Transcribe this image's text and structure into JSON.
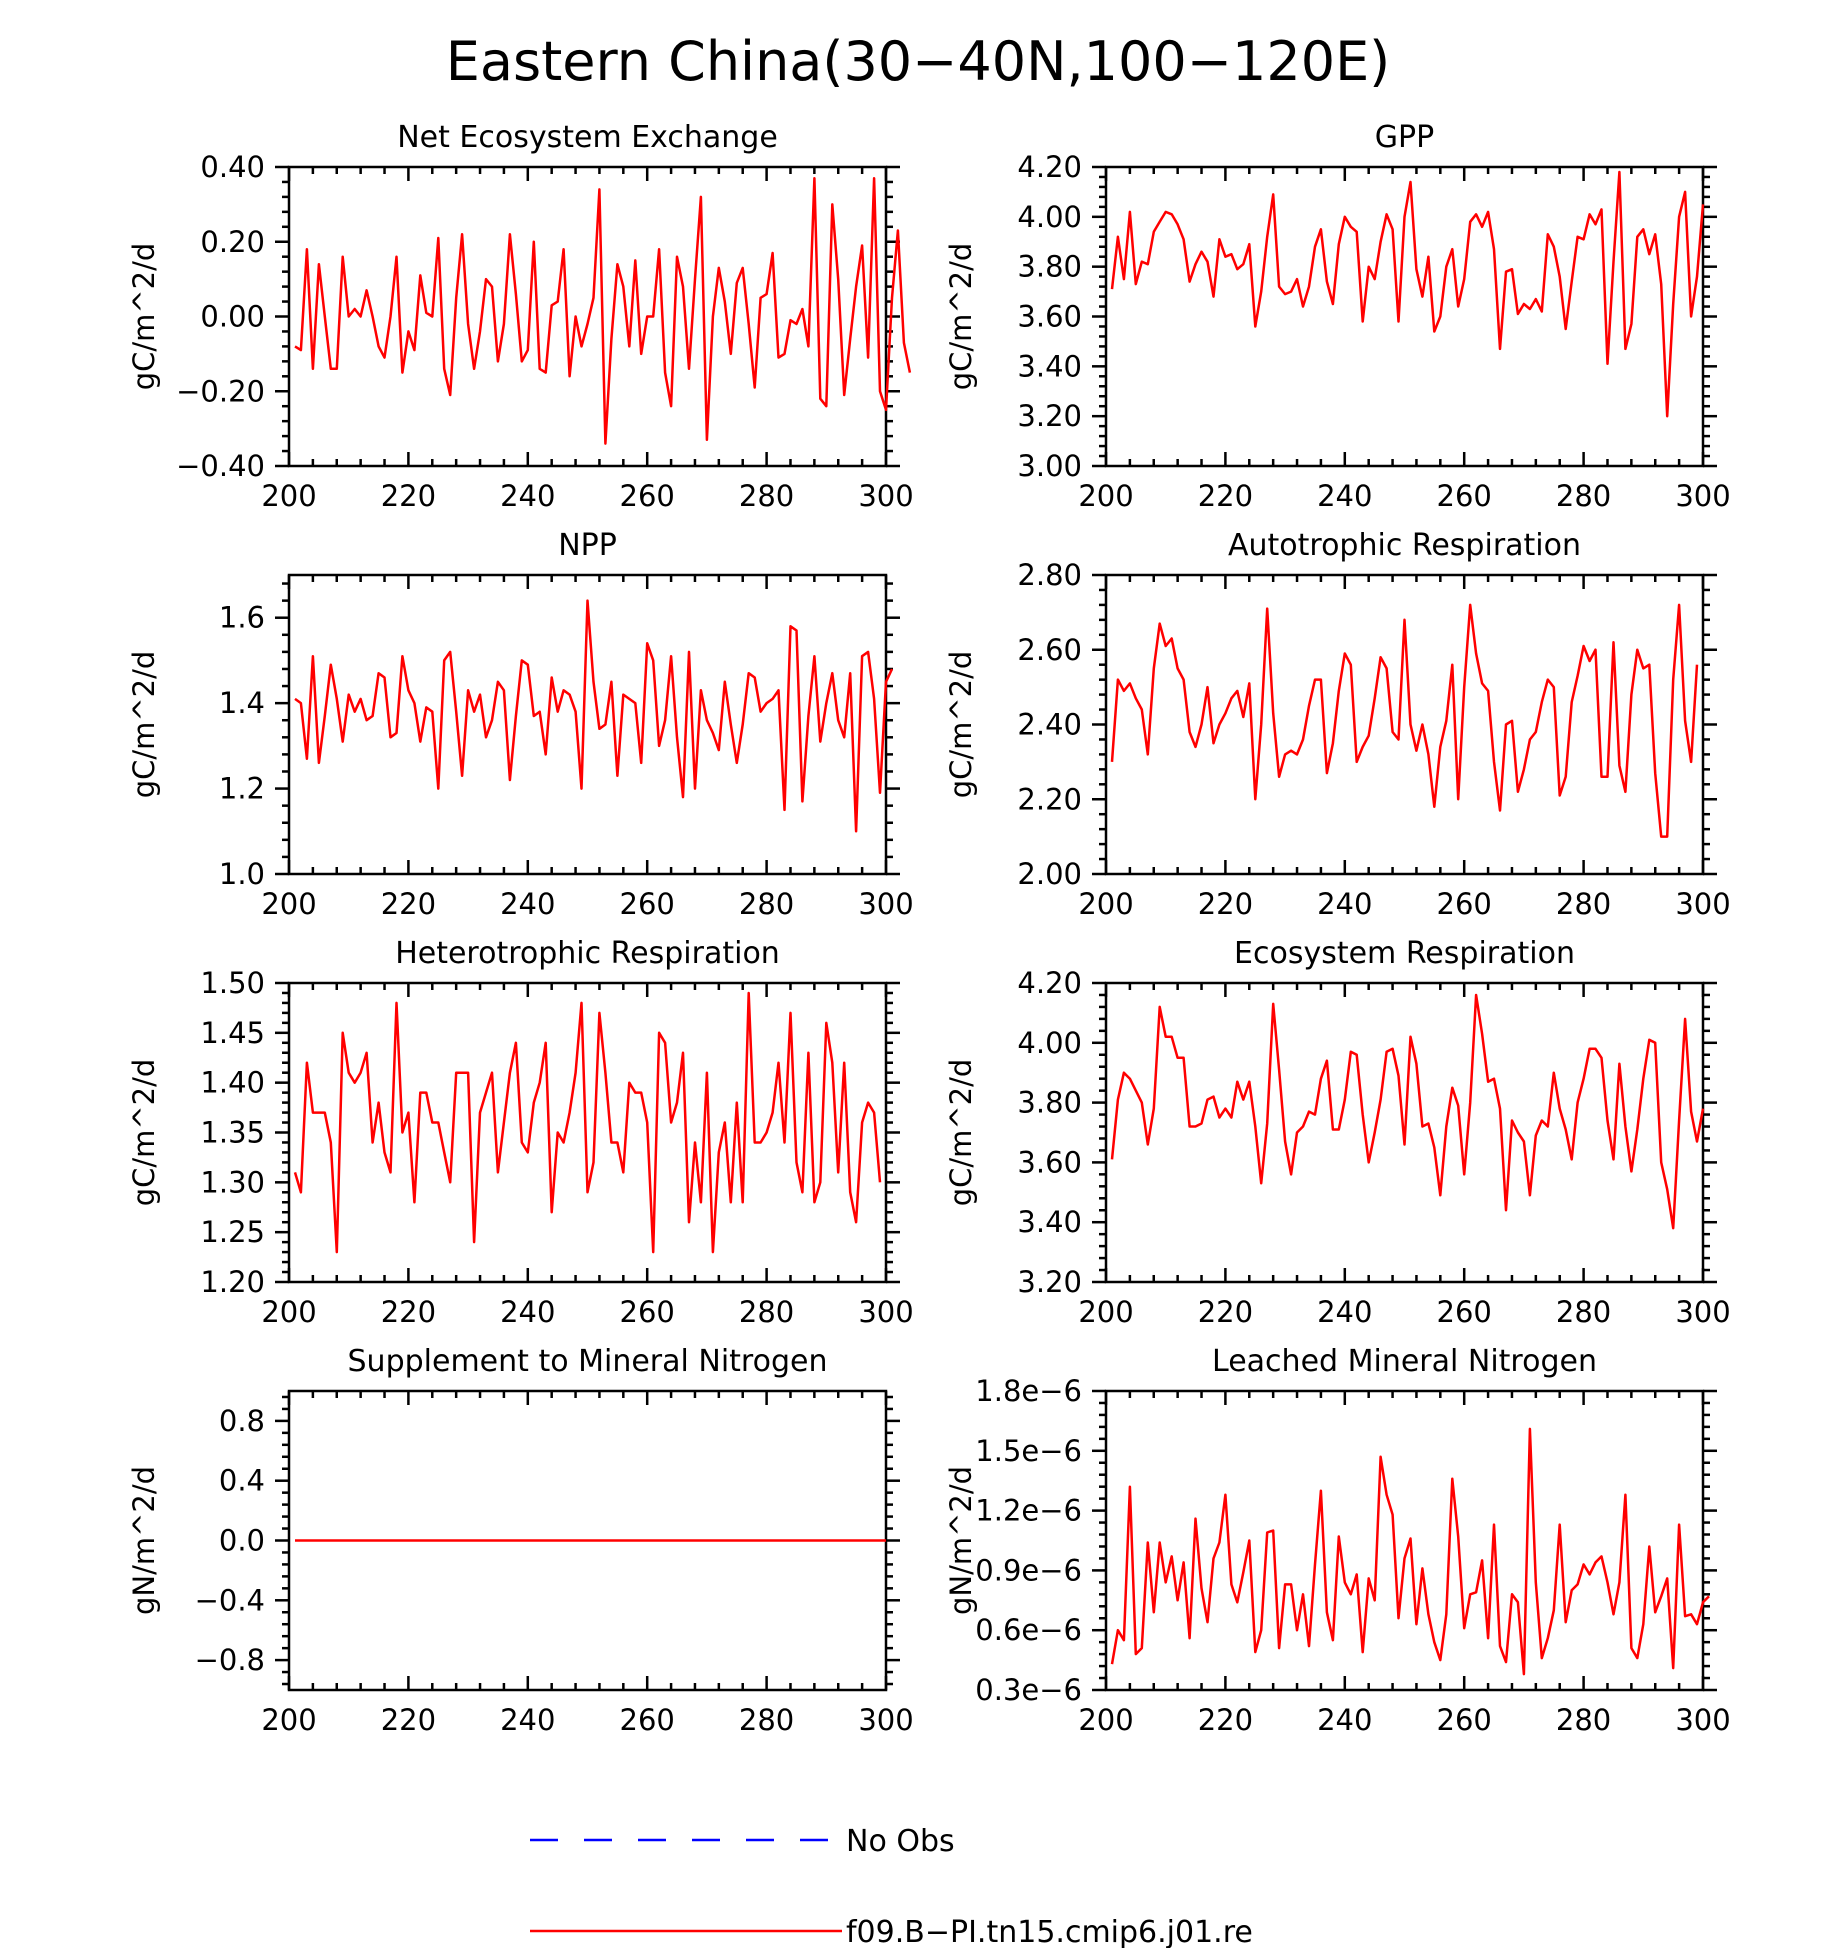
{
  "title": "Eastern China(30−40N,100−120E)",
  "colors": {
    "model": "#ff0000",
    "obs": "#0000ff",
    "axis": "#000000"
  },
  "legend": [
    {
      "label": "No Obs",
      "style": "dashed",
      "color": "#0000ff"
    },
    {
      "label": "f09.B−PI.tn15.cmip6.j01.re",
      "style": "solid",
      "color": "#ff0000"
    }
  ],
  "chart_data": [
    {
      "type": "line",
      "title": "Net Ecosystem Exchange",
      "ylabel": "gC/m^2/d",
      "xlim": [
        200,
        300
      ],
      "xticks": [
        200,
        220,
        240,
        260,
        280,
        300
      ],
      "ylim": [
        -0.4,
        0.4
      ],
      "yticks": [
        -0.4,
        -0.2,
        0.0,
        0.2,
        0.4
      ],
      "yticklabels": [
        "−0.40",
        "−0.20",
        "0.00",
        "0.20",
        "0.40"
      ],
      "yminor": 4,
      "grid": false,
      "series": [
        {
          "x_start": 201,
          "values": [
            -0.08,
            -0.09,
            0.18,
            -0.14,
            0.14,
            0.0,
            -0.14,
            -0.14,
            0.16,
            0.0,
            0.02,
            0.0,
            0.07,
            0.0,
            -0.08,
            -0.11,
            0.0,
            0.16,
            -0.15,
            -0.04,
            -0.09,
            0.11,
            0.01,
            0.0,
            0.21,
            -0.14,
            -0.21,
            0.05,
            0.22,
            -0.02,
            -0.14,
            -0.04,
            0.1,
            0.08,
            -0.12,
            -0.02,
            0.22,
            0.06,
            -0.12,
            -0.09,
            0.2,
            -0.14,
            -0.15,
            0.03,
            0.04,
            0.18,
            -0.16,
            0.0,
            -0.08,
            -0.02,
            0.05,
            0.34,
            -0.34,
            -0.06,
            0.14,
            0.08,
            -0.08,
            0.15,
            -0.1,
            0.0,
            0.0,
            0.18,
            -0.15,
            -0.24,
            0.16,
            0.08,
            -0.14,
            0.1,
            0.32,
            -0.33,
            0.0,
            0.13,
            0.04,
            -0.1,
            0.09,
            0.13,
            -0.02,
            -0.19,
            0.05,
            0.06,
            0.17,
            -0.11,
            -0.1,
            -0.01,
            -0.02,
            0.02,
            -0.08,
            0.37,
            -0.22,
            -0.24,
            0.3,
            0.1,
            -0.21,
            -0.06,
            0.08,
            0.19,
            -0.11,
            0.37,
            -0.2,
            -0.25,
            0.05,
            0.23,
            -0.07,
            -0.15
          ]
        }
      ]
    },
    {
      "type": "line",
      "title": "GPP",
      "ylabel": "gC/m^2/d",
      "xlim": [
        200,
        300
      ],
      "xticks": [
        200,
        220,
        240,
        260,
        280,
        300
      ],
      "ylim": [
        3.0,
        4.2
      ],
      "yticks": [
        3.0,
        3.2,
        3.4,
        3.6,
        3.8,
        4.0,
        4.2
      ],
      "yticklabels": [
        "3.00",
        "3.20",
        "3.40",
        "3.60",
        "3.80",
        "4.00",
        "4.20"
      ],
      "yminor": 4,
      "grid": false,
      "series": [
        {
          "x_start": 201,
          "values": [
            3.71,
            3.92,
            3.75,
            4.02,
            3.73,
            3.82,
            3.81,
            3.94,
            3.98,
            4.02,
            4.01,
            3.97,
            3.91,
            3.74,
            3.81,
            3.86,
            3.82,
            3.68,
            3.91,
            3.84,
            3.85,
            3.79,
            3.81,
            3.89,
            3.56,
            3.7,
            3.92,
            4.09,
            3.72,
            3.69,
            3.7,
            3.75,
            3.64,
            3.72,
            3.88,
            3.95,
            3.74,
            3.65,
            3.89,
            4.0,
            3.96,
            3.94,
            3.58,
            3.8,
            3.75,
            3.9,
            4.01,
            3.95,
            3.58,
            4.0,
            4.14,
            3.79,
            3.68,
            3.84,
            3.54,
            3.6,
            3.8,
            3.87,
            3.64,
            3.75,
            3.98,
            4.01,
            3.96,
            4.02,
            3.87,
            3.47,
            3.78,
            3.79,
            3.61,
            3.65,
            3.63,
            3.67,
            3.62,
            3.93,
            3.88,
            3.76,
            3.55,
            3.74,
            3.92,
            3.91,
            4.01,
            3.97,
            4.03,
            3.41,
            3.82,
            4.18,
            3.47,
            3.57,
            3.92,
            3.95,
            3.85,
            3.93,
            3.73,
            3.2,
            3.65,
            4.0,
            4.1,
            3.6,
            3.76,
            4.05
          ]
        }
      ]
    },
    {
      "type": "line",
      "title": "NPP",
      "ylabel": "gC/m^2/d",
      "xlim": [
        200,
        300
      ],
      "xticks": [
        200,
        220,
        240,
        260,
        280,
        300
      ],
      "ylim": [
        1.0,
        1.7
      ],
      "yticks": [
        1.0,
        1.2,
        1.4,
        1.6
      ],
      "yticklabels": [
        "1.0",
        "1.2",
        "1.4",
        "1.6"
      ],
      "yminor": 4,
      "grid": false,
      "series": [
        {
          "x_start": 201,
          "values": [
            1.41,
            1.4,
            1.27,
            1.51,
            1.26,
            1.37,
            1.49,
            1.41,
            1.31,
            1.42,
            1.38,
            1.41,
            1.36,
            1.37,
            1.47,
            1.46,
            1.32,
            1.33,
            1.51,
            1.43,
            1.4,
            1.31,
            1.39,
            1.38,
            1.2,
            1.5,
            1.52,
            1.38,
            1.23,
            1.43,
            1.38,
            1.42,
            1.32,
            1.36,
            1.45,
            1.43,
            1.22,
            1.37,
            1.5,
            1.49,
            1.37,
            1.38,
            1.28,
            1.46,
            1.38,
            1.43,
            1.42,
            1.38,
            1.2,
            1.64,
            1.45,
            1.34,
            1.35,
            1.45,
            1.23,
            1.42,
            1.41,
            1.4,
            1.26,
            1.54,
            1.5,
            1.3,
            1.36,
            1.51,
            1.32,
            1.18,
            1.52,
            1.2,
            1.43,
            1.36,
            1.33,
            1.29,
            1.45,
            1.35,
            1.26,
            1.35,
            1.47,
            1.46,
            1.38,
            1.4,
            1.41,
            1.43,
            1.15,
            1.58,
            1.57,
            1.17,
            1.37,
            1.51,
            1.31,
            1.4,
            1.47,
            1.36,
            1.32,
            1.47,
            1.1,
            1.51,
            1.52,
            1.41,
            1.19,
            1.45,
            1.48
          ]
        }
      ]
    },
    {
      "type": "line",
      "title": "Autotrophic Respiration",
      "ylabel": "gC/m^2/d",
      "xlim": [
        200,
        300
      ],
      "xticks": [
        200,
        220,
        240,
        260,
        280,
        300
      ],
      "ylim": [
        2.0,
        2.8
      ],
      "yticks": [
        2.0,
        2.2,
        2.4,
        2.6,
        2.8
      ],
      "yticklabels": [
        "2.00",
        "2.20",
        "2.40",
        "2.60",
        "2.80"
      ],
      "yminor": 4,
      "grid": false,
      "series": [
        {
          "x_start": 201,
          "values": [
            2.3,
            2.52,
            2.49,
            2.51,
            2.47,
            2.44,
            2.32,
            2.55,
            2.67,
            2.61,
            2.63,
            2.55,
            2.52,
            2.38,
            2.34,
            2.4,
            2.5,
            2.35,
            2.4,
            2.43,
            2.47,
            2.49,
            2.42,
            2.51,
            2.2,
            2.4,
            2.71,
            2.43,
            2.26,
            2.32,
            2.33,
            2.32,
            2.36,
            2.45,
            2.52,
            2.52,
            2.27,
            2.35,
            2.49,
            2.59,
            2.56,
            2.3,
            2.34,
            2.37,
            2.47,
            2.58,
            2.55,
            2.38,
            2.36,
            2.68,
            2.4,
            2.33,
            2.4,
            2.32,
            2.18,
            2.34,
            2.41,
            2.56,
            2.2,
            2.5,
            2.72,
            2.59,
            2.51,
            2.49,
            2.3,
            2.17,
            2.4,
            2.41,
            2.22,
            2.28,
            2.36,
            2.38,
            2.46,
            2.52,
            2.5,
            2.21,
            2.26,
            2.46,
            2.53,
            2.61,
            2.57,
            2.6,
            2.26,
            2.26,
            2.62,
            2.29,
            2.22,
            2.48,
            2.6,
            2.55,
            2.56,
            2.27,
            2.1,
            2.1,
            2.52,
            2.72,
            2.41,
            2.3,
            2.56
          ]
        }
      ]
    },
    {
      "type": "line",
      "title": "Heterotrophic Respiration",
      "ylabel": "gC/m^2/d",
      "xlim": [
        200,
        300
      ],
      "xticks": [
        200,
        220,
        240,
        260,
        280,
        300
      ],
      "ylim": [
        1.2,
        1.5
      ],
      "yticks": [
        1.2,
        1.25,
        1.3,
        1.35,
        1.4,
        1.45,
        1.5
      ],
      "yticklabels": [
        "1.20",
        "1.25",
        "1.30",
        "1.35",
        "1.40",
        "1.45",
        "1.50"
      ],
      "yminor": 4,
      "grid": false,
      "series": [
        {
          "x_start": 201,
          "values": [
            1.31,
            1.29,
            1.42,
            1.37,
            1.37,
            1.37,
            1.34,
            1.23,
            1.45,
            1.41,
            1.4,
            1.41,
            1.43,
            1.34,
            1.38,
            1.33,
            1.31,
            1.48,
            1.35,
            1.37,
            1.28,
            1.39,
            1.39,
            1.36,
            1.36,
            1.33,
            1.3,
            1.41,
            1.41,
            1.41,
            1.24,
            1.37,
            1.39,
            1.41,
            1.31,
            1.36,
            1.41,
            1.44,
            1.34,
            1.33,
            1.38,
            1.4,
            1.44,
            1.27,
            1.35,
            1.34,
            1.37,
            1.41,
            1.48,
            1.29,
            1.32,
            1.47,
            1.41,
            1.34,
            1.34,
            1.31,
            1.4,
            1.39,
            1.39,
            1.36,
            1.23,
            1.45,
            1.44,
            1.36,
            1.38,
            1.43,
            1.26,
            1.34,
            1.28,
            1.41,
            1.23,
            1.33,
            1.36,
            1.28,
            1.38,
            1.28,
            1.49,
            1.34,
            1.34,
            1.35,
            1.37,
            1.42,
            1.34,
            1.47,
            1.32,
            1.29,
            1.43,
            1.28,
            1.3,
            1.46,
            1.42,
            1.31,
            1.42,
            1.29,
            1.26,
            1.36,
            1.38,
            1.37,
            1.3
          ]
        }
      ]
    },
    {
      "type": "line",
      "title": "Ecosystem Respiration",
      "ylabel": "gC/m^2/d",
      "xlim": [
        200,
        300
      ],
      "xticks": [
        200,
        220,
        240,
        260,
        280,
        300
      ],
      "ylim": [
        3.2,
        4.2
      ],
      "yticks": [
        3.2,
        3.4,
        3.6,
        3.8,
        4.0,
        4.2
      ],
      "yticklabels": [
        "3.20",
        "3.40",
        "3.60",
        "3.80",
        "4.00",
        "4.20"
      ],
      "yminor": 4,
      "grid": false,
      "series": [
        {
          "x_start": 201,
          "values": [
            3.61,
            3.81,
            3.9,
            3.88,
            3.84,
            3.8,
            3.66,
            3.78,
            4.12,
            4.02,
            4.02,
            3.95,
            3.95,
            3.72,
            3.72,
            3.73,
            3.81,
            3.82,
            3.75,
            3.78,
            3.75,
            3.87,
            3.81,
            3.87,
            3.72,
            3.53,
            3.73,
            4.13,
            3.91,
            3.67,
            3.56,
            3.7,
            3.72,
            3.77,
            3.76,
            3.88,
            3.94,
            3.71,
            3.71,
            3.81,
            3.97,
            3.96,
            3.76,
            3.6,
            3.7,
            3.81,
            3.97,
            3.98,
            3.89,
            3.66,
            4.02,
            3.93,
            3.72,
            3.73,
            3.65,
            3.49,
            3.72,
            3.85,
            3.79,
            3.56,
            3.8,
            4.16,
            4.03,
            3.87,
            3.88,
            3.78,
            3.44,
            3.74,
            3.7,
            3.67,
            3.49,
            3.69,
            3.74,
            3.72,
            3.9,
            3.78,
            3.71,
            3.61,
            3.8,
            3.88,
            3.98,
            3.98,
            3.95,
            3.74,
            3.61,
            3.93,
            3.72,
            3.57,
            3.71,
            3.88,
            4.01,
            4.0,
            3.6,
            3.51,
            3.38,
            3.74,
            4.08,
            3.77,
            3.67,
            3.78
          ]
        }
      ]
    },
    {
      "type": "line",
      "title": "Supplement to Mineral Nitrogen",
      "ylabel": "gN/m^2/d",
      "xlim": [
        200,
        300
      ],
      "xticks": [
        200,
        220,
        240,
        260,
        280,
        300
      ],
      "ylim": [
        -1.0,
        1.0
      ],
      "yticks": [
        -0.8,
        -0.4,
        0.0,
        0.4,
        0.8
      ],
      "yticklabels": [
        "−0.8",
        "−0.4",
        "0.0",
        "0.4",
        "0.8"
      ],
      "yminor": 4,
      "grid": false,
      "series": [
        {
          "x": [
            201,
            300
          ],
          "values": [
            0.0,
            0.0
          ]
        }
      ]
    },
    {
      "type": "line",
      "title": "Leached Mineral Nitrogen",
      "ylabel": "gN/m^2/d",
      "xlim": [
        200,
        300
      ],
      "xticks": [
        200,
        220,
        240,
        260,
        280,
        300
      ],
      "ylim": [
        3e-07,
        1.8e-06
      ],
      "yticks": [
        3e-07,
        6e-07,
        9e-07,
        1.2e-06,
        1.5e-06,
        1.8e-06
      ],
      "yticklabels": [
        "0.3e−6",
        "0.6e−6",
        "0.9e−6",
        "1.2e−6",
        "1.5e−6",
        "1.8e−6"
      ],
      "yminor": 4,
      "grid": false,
      "series": [
        {
          "x_start": 201,
          "values": [
            4.3e-07,
            6e-07,
            5.5e-07,
            1.32e-06,
            4.8e-07,
            5.1e-07,
            1.04e-06,
            6.9e-07,
            1.04e-06,
            8.4e-07,
            9.7e-07,
            7.5e-07,
            9.4e-07,
            5.6e-07,
            1.16e-06,
            8.1e-07,
            6.4e-07,
            9.6e-07,
            1.04e-06,
            1.28e-06,
            8.3e-07,
            7.4e-07,
            8.9e-07,
            1.05e-06,
            4.9e-07,
            6e-07,
            1.09e-06,
            1.1e-06,
            5.1e-07,
            8.3e-07,
            8.3e-07,
            6e-07,
            7.8e-07,
            5.2e-07,
            9.3e-07,
            1.3e-06,
            6.9e-07,
            5.5e-07,
            1.07e-06,
            8.4e-07,
            7.8e-07,
            8.8e-07,
            4.9e-07,
            8.6e-07,
            7.5e-07,
            1.47e-06,
            1.28e-06,
            1.18e-06,
            6.6e-07,
            9.6e-07,
            1.06e-06,
            6.3e-07,
            9.1e-07,
            6.8e-07,
            5.4e-07,
            4.5e-07,
            6.8e-07,
            1.36e-06,
            1.07e-06,
            6.1e-07,
            7.8e-07,
            7.9e-07,
            9.5e-07,
            5.6e-07,
            1.13e-06,
            5.2e-07,
            4.4e-07,
            7.8e-07,
            7.4e-07,
            3.8e-07,
            1.61e-06,
            8.4e-07,
            4.6e-07,
            5.6e-07,
            7e-07,
            1.13e-06,
            6.4e-07,
            8e-07,
            8.3e-07,
            9.3e-07,
            8.8e-07,
            9.4e-07,
            9.7e-07,
            8.4e-07,
            6.8e-07,
            8.4e-07,
            1.28e-06,
            5.1e-07,
            4.6e-07,
            6.3e-07,
            1.02e-06,
            6.9e-07,
            7.7e-07,
            8.6e-07,
            4.1e-07,
            1.13e-06,
            6.7e-07,
            6.8e-07,
            6.3e-07,
            7.4e-07,
            7.7e-07
          ]
        }
      ]
    }
  ]
}
